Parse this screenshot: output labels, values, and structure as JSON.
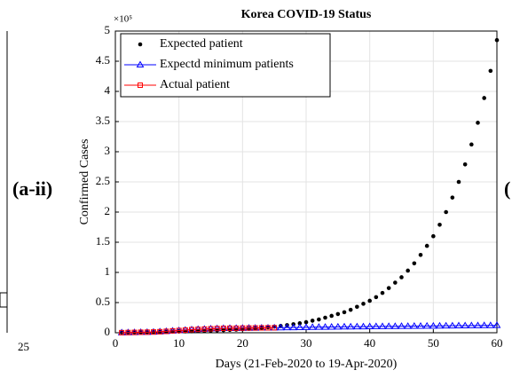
{
  "chart_data": {
    "type": "scatter",
    "title": "Korea COVID-19 Status",
    "x_label": "Days (21-Feb-2020 to 19-Apr-2020)",
    "y_label": "Confirmed Cases",
    "y_multiplier": "×10⁵",
    "annotations": [
      "(a-ii)",
      "25",
      "("
    ],
    "xlim": [
      0,
      60
    ],
    "xticks": [
      0,
      10,
      20,
      30,
      40,
      50,
      60
    ],
    "ylim": [
      0,
      500000
    ],
    "yticks": [
      0,
      {
        "value": 50000,
        "label": "0.5"
      },
      {
        "value": 100000,
        "label": "1"
      },
      {
        "value": 150000,
        "label": "1.5"
      },
      {
        "value": 200000,
        "label": "2"
      },
      {
        "value": 250000,
        "label": "2.5"
      },
      {
        "value": 300000,
        "label": "3"
      },
      {
        "value": 350000,
        "label": "3.5"
      },
      {
        "value": 400000,
        "label": "4"
      },
      {
        "value": 450000,
        "label": "4.5"
      },
      {
        "value": 500000,
        "label": "5"
      }
    ],
    "grid": true,
    "legend": "upper left",
    "series": [
      {
        "name": "Expected patient",
        "color": "#000000",
        "marker": "dot",
        "x": [
          1,
          2,
          3,
          4,
          5,
          6,
          7,
          8,
          9,
          10,
          11,
          12,
          13,
          14,
          15,
          16,
          17,
          18,
          19,
          20,
          21,
          22,
          23,
          24,
          25,
          26,
          27,
          28,
          29,
          30,
          31,
          32,
          33,
          34,
          35,
          36,
          37,
          38,
          39,
          40,
          41,
          42,
          43,
          44,
          45,
          46,
          47,
          48,
          49,
          50,
          51,
          52,
          53,
          54,
          55,
          56,
          57,
          58,
          59,
          60
        ],
        "values": [
          730,
          810,
          900,
          1010,
          1130,
          1260,
          1400,
          1570,
          1750,
          1950,
          2200,
          2400,
          2700,
          3000,
          3400,
          3800,
          4200,
          4700,
          5200,
          5800,
          6500,
          7300,
          8100,
          9000,
          10100,
          11300,
          12600,
          14100,
          15700,
          17500,
          20000,
          22000,
          25000,
          28000,
          31000,
          34000,
          38000,
          43000,
          48000,
          53000,
          59000,
          66000,
          74000,
          83000,
          92000,
          103000,
          115000,
          129000,
          144000,
          160000,
          179000,
          200000,
          224000,
          250000,
          279000,
          312000,
          348000,
          389000,
          434000,
          485000
        ]
      },
      {
        "name": "Expectd minimum patients",
        "color": "#0000ff",
        "marker": "triangle",
        "x": [
          1,
          2,
          3,
          4,
          5,
          6,
          7,
          8,
          9,
          10,
          11,
          12,
          13,
          14,
          15,
          16,
          17,
          18,
          19,
          20,
          21,
          22,
          23,
          24,
          25,
          26,
          27,
          28,
          29,
          30,
          31,
          32,
          33,
          34,
          35,
          36,
          37,
          38,
          39,
          40,
          41,
          42,
          43,
          44,
          45,
          46,
          47,
          48,
          49,
          50,
          51,
          52,
          53,
          54,
          55,
          56,
          57,
          58,
          59,
          60
        ],
        "values": [
          204,
          433,
          602,
          833,
          977,
          1261,
          1766,
          2337,
          3150,
          3736,
          4335,
          5186,
          5621,
          6088,
          6593,
          7041,
          7313,
          7478,
          7513,
          7755,
          7869,
          7979,
          8086,
          8162,
          8236,
          8400,
          8550,
          8700,
          8850,
          9000,
          9150,
          9300,
          9450,
          9600,
          9750,
          9900,
          10000,
          10100,
          10200,
          10300,
          10400,
          10500,
          10600,
          10700,
          10800,
          10900,
          11000,
          11100,
          11200,
          11300,
          11400,
          11500,
          11600,
          11700,
          11800,
          11900,
          12000,
          12100,
          12200,
          12300
        ]
      },
      {
        "name": "Actual patient",
        "color": "#ff0000",
        "marker": "square",
        "x": [
          1,
          2,
          3,
          4,
          5,
          6,
          7,
          8,
          9,
          10,
          11,
          12,
          13,
          14,
          15,
          16,
          17,
          18,
          19,
          20,
          21,
          22,
          23,
          24,
          25
        ],
        "values": [
          204,
          433,
          602,
          833,
          977,
          1261,
          1766,
          2337,
          3150,
          3736,
          4335,
          5186,
          5621,
          6088,
          6593,
          7041,
          7313,
          7478,
          7513,
          7755,
          7869,
          7979,
          8086,
          8162,
          8236
        ]
      }
    ]
  }
}
